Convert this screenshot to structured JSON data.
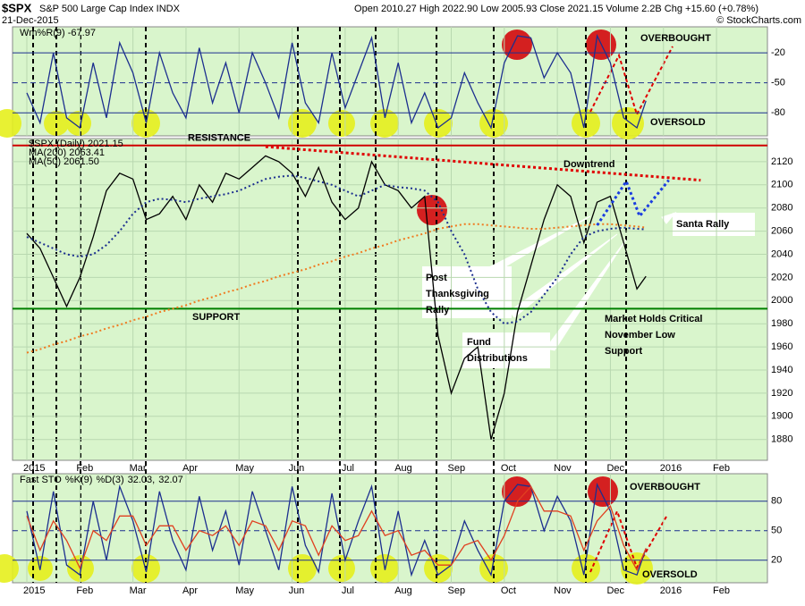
{
  "header": {
    "symbol": "$SPX",
    "name": "S&P 500 Large Cap Index INDX",
    "date": "21-Dec-2015",
    "quote": "Open 2010.27 High 2022.90 Low 2005.93 Close 2021.15 Volume 2.2B Chg +15.60 (+0.78%)",
    "credit": "© StockCharts.com"
  },
  "chart_data": [
    {
      "type": "line",
      "title": "Wm%R(9) -67.97",
      "x": [
        0,
        0.25,
        0.5,
        0.75,
        1,
        1.25,
        1.5,
        1.75,
        2,
        2.25,
        2.5,
        2.75,
        3,
        3.25,
        3.5,
        3.75,
        4,
        4.25,
        4.5,
        4.75,
        5,
        5.25,
        5.5,
        5.75,
        6,
        6.25,
        6.5,
        6.75,
        7,
        7.25,
        7.5,
        7.75,
        8,
        8.25,
        8.5,
        8.75,
        9,
        9.25,
        9.5,
        9.75,
        10,
        10.25,
        10.5,
        10.75,
        11,
        11.25,
        11.5,
        11.67
      ],
      "series": [
        {
          "name": "Wm%R(9)",
          "color": "#1c2f8f",
          "values": [
            -60,
            -90,
            -20,
            -85,
            -95,
            -30,
            -85,
            -10,
            -40,
            -90,
            -20,
            -60,
            -85,
            -15,
            -70,
            -30,
            -80,
            -20,
            -50,
            -85,
            -10,
            -70,
            -90,
            -20,
            -75,
            -40,
            -5,
            -85,
            -30,
            -90,
            -60,
            -95,
            -85,
            -40,
            -70,
            -95,
            -30,
            -3,
            -5,
            -45,
            -20,
            -40,
            -95,
            -3,
            -30,
            -85,
            -95,
            -68
          ]
        }
      ],
      "xlim": [
        -0.27,
        13.96
      ],
      "ylim": [
        -103,
        6
      ],
      "yticks": [
        -20,
        -50,
        -80
      ],
      "annotations": [
        "OVERBOUGHT",
        "OVERSOLD"
      ]
    },
    {
      "type": "line",
      "x": [
        0,
        0.25,
        0.5,
        0.75,
        1,
        1.25,
        1.5,
        1.75,
        2,
        2.25,
        2.5,
        2.75,
        3,
        3.25,
        3.5,
        3.75,
        4,
        4.25,
        4.5,
        4.75,
        5,
        5.25,
        5.5,
        5.75,
        6,
        6.25,
        6.5,
        6.75,
        7,
        7.25,
        7.5,
        7.75,
        8,
        8.25,
        8.5,
        8.75,
        9,
        9.25,
        9.5,
        9.75,
        10,
        10.25,
        10.5,
        10.75,
        11,
        11.25,
        11.5,
        11.67
      ],
      "series": [
        {
          "name": "$SPX (Daily) 2021.15",
          "color": "#000000",
          "values": [
            2058,
            2045,
            2020,
            1995,
            2020,
            2055,
            2095,
            2110,
            2105,
            2070,
            2075,
            2090,
            2070,
            2100,
            2085,
            2110,
            2105,
            2115,
            2125,
            2120,
            2110,
            2090,
            2115,
            2085,
            2070,
            2080,
            2120,
            2100,
            2095,
            2080,
            2090,
            1970,
            1920,
            1950,
            1960,
            1880,
            1920,
            1990,
            2030,
            2070,
            2100,
            2090,
            2050,
            2085,
            2090,
            2050,
            2010,
            2021
          ]
        },
        {
          "name": "MA(200) 2063.41",
          "color": "#f07a20",
          "values": [
            1955,
            1958,
            1962,
            1965,
            1969,
            1972,
            1976,
            1979,
            1983,
            1986,
            1990,
            1993,
            1996,
            2000,
            2003,
            2007,
            2010,
            2014,
            2017,
            2021,
            2024,
            2027,
            2031,
            2034,
            2038,
            2041,
            2045,
            2048,
            2052,
            2055,
            2058,
            2062,
            2064,
            2066,
            2066,
            2065,
            2064,
            2063,
            2062,
            2062,
            2063,
            2064,
            2065,
            2066,
            2066,
            2065,
            2064,
            2063
          ]
        },
        {
          "name": "MA(50) 2061.50",
          "color": "#1c2f8f",
          "values": [
            2055,
            2050,
            2045,
            2040,
            2038,
            2040,
            2048,
            2060,
            2075,
            2085,
            2088,
            2087,
            2085,
            2088,
            2090,
            2092,
            2095,
            2100,
            2105,
            2107,
            2108,
            2106,
            2103,
            2100,
            2095,
            2090,
            2095,
            2100,
            2098,
            2097,
            2095,
            2085,
            2060,
            2040,
            2010,
            1990,
            1980,
            1982,
            1990,
            2005,
            2020,
            2040,
            2055,
            2060,
            2062,
            2063,
            2062,
            2061.5
          ]
        }
      ],
      "xlim": [
        -0.27,
        13.96
      ],
      "ylim": [
        1862,
        2140
      ],
      "yticks": [
        1880,
        1900,
        1920,
        1940,
        1960,
        1980,
        2000,
        2020,
        2040,
        2060,
        2080,
        2100,
        2120
      ],
      "xticks": [
        {
          "value": 0,
          "label": "2015"
        },
        {
          "value": 1,
          "label": "Feb"
        },
        {
          "value": 2,
          "label": "Mar"
        },
        {
          "value": 3,
          "label": "Apr"
        },
        {
          "value": 4,
          "label": "May"
        },
        {
          "value": 5,
          "label": "Jun"
        },
        {
          "value": 6,
          "label": "Jul"
        },
        {
          "value": 7,
          "label": "Aug"
        },
        {
          "value": 8,
          "label": "Sep"
        },
        {
          "value": 9,
          "label": "Oct"
        },
        {
          "value": 10,
          "label": "Nov"
        },
        {
          "value": 11,
          "label": "Dec"
        },
        {
          "value": 12,
          "label": "2016"
        },
        {
          "value": 13,
          "label": "Feb"
        }
      ],
      "reference_lines": [
        {
          "label": "RESISTANCE",
          "value": 2134,
          "color": "#d00000"
        },
        {
          "label": "SUPPORT",
          "value": 1993,
          "color": "#008000"
        }
      ],
      "trendlines": [
        {
          "label": "Downtrend",
          "x": [
            4.5,
            12.7
          ],
          "y": [
            2133,
            2104
          ],
          "color": "#e00000"
        },
        {
          "label": "Santa Rally",
          "x": [
            10.75,
            11.3,
            11.55,
            12.1
          ],
          "y": [
            2065,
            2103,
            2073,
            2104
          ],
          "color": "#1a3de0"
        }
      ],
      "callouts": [
        [
          "Post",
          "Thanksgiving",
          "Rally"
        ],
        [
          "Fund",
          "Distributions"
        ],
        [
          "Market Holds Critical",
          "November Low",
          "Support"
        ]
      ]
    },
    {
      "type": "line",
      "title": "Fast STO",
      "x": [
        0,
        0.25,
        0.5,
        0.75,
        1,
        1.25,
        1.5,
        1.75,
        2,
        2.25,
        2.5,
        2.75,
        3,
        3.25,
        3.5,
        3.75,
        4,
        4.25,
        4.5,
        4.75,
        5,
        5.25,
        5.5,
        5.75,
        6,
        6.25,
        6.5,
        6.75,
        7,
        7.25,
        7.5,
        7.75,
        8,
        8.25,
        8.5,
        8.75,
        9,
        9.25,
        9.5,
        9.75,
        10,
        10.25,
        10.5,
        10.75,
        11,
        11.25,
        11.5,
        11.67
      ],
      "series": [
        {
          "name": "%K(9)",
          "last_label": "32.03,",
          "color": "#1c2f8f",
          "values": [
            70,
            10,
            90,
            15,
            5,
            80,
            20,
            95,
            60,
            8,
            90,
            40,
            10,
            85,
            30,
            70,
            15,
            90,
            50,
            10,
            95,
            35,
            8,
            88,
            20,
            60,
            95,
            10,
            70,
            5,
            40,
            5,
            15,
            60,
            30,
            5,
            80,
            97,
            95,
            50,
            85,
            60,
            5,
            97,
            70,
            10,
            5,
            32
          ]
        },
        {
          "name": "%D(3)",
          "last_label": "32.07",
          "color": "#e04020",
          "values": [
            65,
            30,
            60,
            40,
            12,
            50,
            40,
            65,
            65,
            35,
            55,
            55,
            30,
            50,
            45,
            55,
            35,
            60,
            55,
            30,
            60,
            55,
            25,
            55,
            40,
            45,
            70,
            45,
            50,
            25,
            30,
            15,
            15,
            35,
            40,
            20,
            45,
            80,
            95,
            70,
            70,
            65,
            30,
            60,
            75,
            35,
            10,
            32
          ]
        }
      ],
      "xlim": [
        -0.27,
        13.96
      ],
      "ylim": [
        -3,
        108
      ],
      "yticks": [
        80,
        50,
        20
      ],
      "xticks": [
        {
          "value": 0,
          "label": "2015"
        },
        {
          "value": 1,
          "label": "Feb"
        },
        {
          "value": 2,
          "label": "Mar"
        },
        {
          "value": 3,
          "label": "Apr"
        },
        {
          "value": 4,
          "label": "May"
        },
        {
          "value": 5,
          "label": "Jun"
        },
        {
          "value": 6,
          "label": "Jul"
        },
        {
          "value": 7,
          "label": "Aug"
        },
        {
          "value": 8,
          "label": "Sep"
        },
        {
          "value": 9,
          "label": "Oct"
        },
        {
          "value": 10,
          "label": "Nov"
        },
        {
          "value": 11,
          "label": "Dec"
        },
        {
          "value": 12,
          "label": "2016"
        },
        {
          "value": 13,
          "label": "Feb"
        }
      ],
      "annotations": [
        "OVERBOUGHT",
        "OVERSOLD"
      ]
    }
  ]
}
